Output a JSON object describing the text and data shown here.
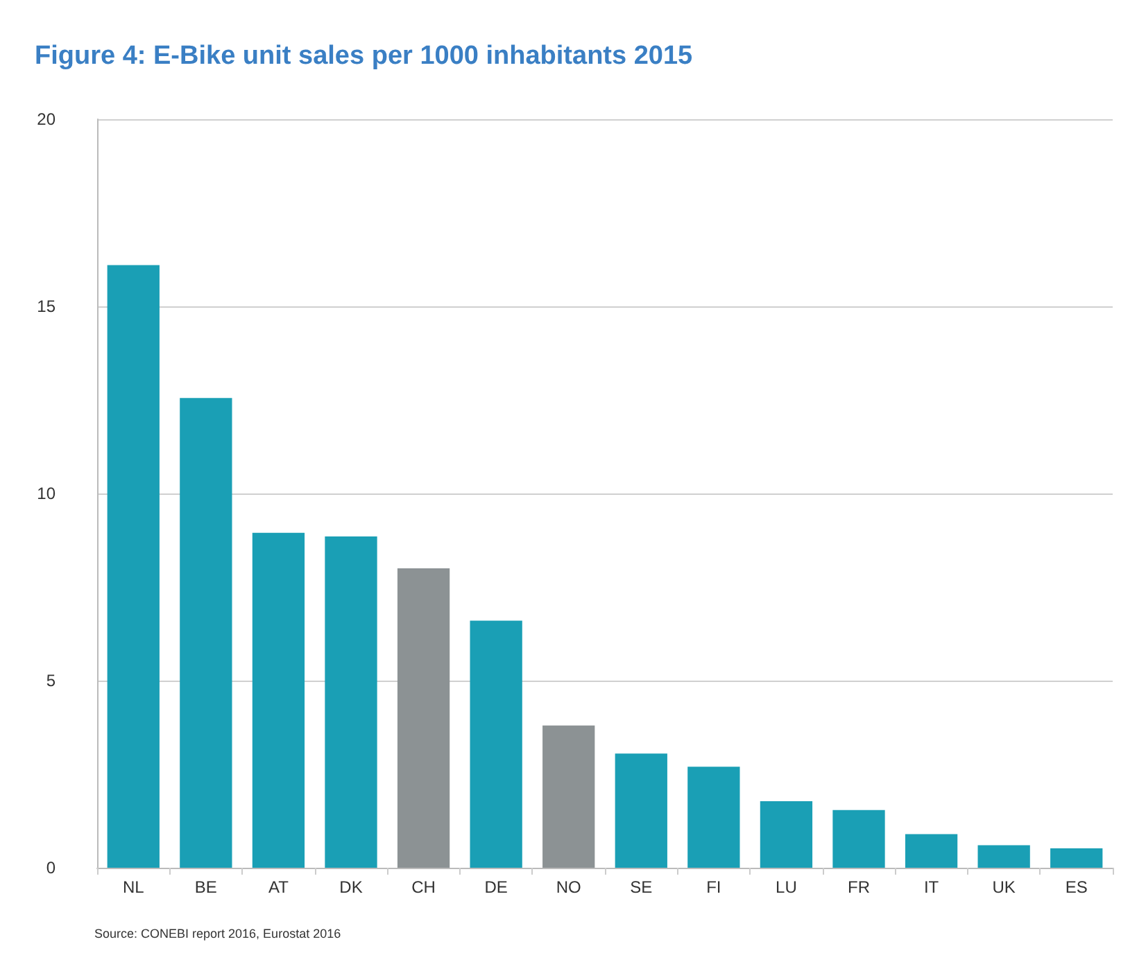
{
  "chart_data": {
    "type": "bar",
    "title": "Figure 4: E-Bike unit sales per 1000 inhabitants 2015",
    "categories": [
      "NL",
      "BE",
      "AT",
      "DK",
      "CH",
      "DE",
      "NO",
      "SE",
      "FI",
      "LU",
      "FR",
      "IT",
      "UK",
      "ES"
    ],
    "values": [
      16.1,
      12.55,
      8.95,
      8.85,
      8.0,
      6.6,
      3.8,
      3.05,
      2.7,
      1.78,
      1.54,
      0.9,
      0.6,
      0.52
    ],
    "colors": [
      "#1a9fb5",
      "#1a9fb5",
      "#1a9fb5",
      "#1a9fb5",
      "#8c9294",
      "#1a9fb5",
      "#8c9294",
      "#1a9fb5",
      "#1a9fb5",
      "#1a9fb5",
      "#1a9fb5",
      "#1a9fb5",
      "#1a9fb5",
      "#1a9fb5"
    ],
    "ylim": [
      0,
      20
    ],
    "yticks": [
      0,
      5,
      10,
      15,
      20
    ],
    "grid": "y",
    "annotations": [
      "Source: CONEBI report 2016, Eurostat 2016"
    ]
  }
}
